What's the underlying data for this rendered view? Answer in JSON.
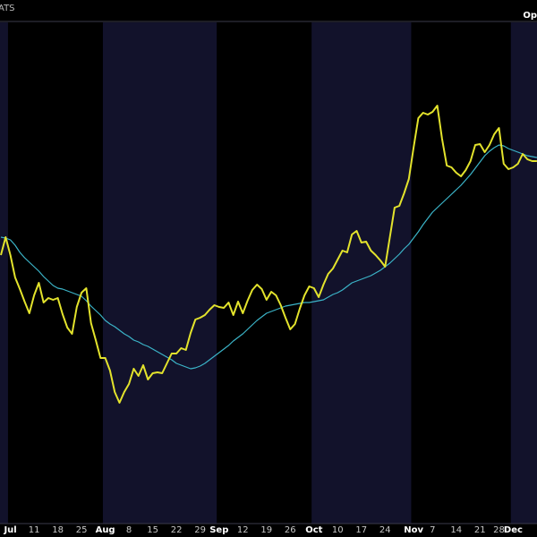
{
  "chart_data": {
    "type": "line",
    "annotations": [
      "ATS",
      "Op"
    ],
    "categories": [
      null,
      null,
      "Jul",
      null,
      null,
      null,
      null,
      "11",
      null,
      null,
      null,
      null,
      "18",
      null,
      null,
      null,
      null,
      "25",
      null,
      null,
      null,
      null,
      "Aug",
      null,
      null,
      null,
      null,
      "8",
      null,
      null,
      null,
      null,
      "15",
      null,
      null,
      null,
      null,
      "22",
      null,
      null,
      null,
      null,
      "29",
      null,
      null,
      null,
      "Sep",
      null,
      null,
      null,
      null,
      "12",
      null,
      null,
      null,
      null,
      "19",
      null,
      null,
      null,
      null,
      "26",
      null,
      null,
      null,
      null,
      "Oct",
      null,
      null,
      null,
      null,
      "10",
      null,
      null,
      null,
      null,
      "17",
      null,
      null,
      null,
      null,
      "24",
      null,
      null,
      null,
      null,
      null,
      "Nov",
      null,
      null,
      null,
      "7",
      null,
      null,
      null,
      null,
      "14",
      null,
      null,
      null,
      null,
      "21",
      null,
      null,
      null,
      "28",
      null,
      null,
      "Dec",
      null,
      null,
      null,
      null,
      null
    ],
    "series": [
      {
        "color": "#e3e32c",
        "values": [
          315,
          335,
          315,
          290,
          277,
          263,
          250,
          270,
          284,
          262,
          267,
          265,
          267,
          249,
          234,
          227,
          257,
          273,
          278,
          239,
          220,
          200,
          200,
          186,
          162,
          150,
          162,
          171,
          188,
          180,
          192,
          176,
          183,
          184,
          183,
          194,
          205,
          205,
          211,
          209,
          228,
          243,
          245,
          248,
          254,
          259,
          257,
          256,
          262,
          248,
          263,
          250,
          264,
          276,
          282,
          277,
          265,
          274,
          270,
          259,
          245,
          232,
          238,
          255,
          270,
          280,
          278,
          268,
          282,
          294,
          300,
          310,
          320,
          318,
          338,
          342,
          329,
          330,
          320,
          315,
          309,
          302,
          335,
          368,
          370,
          384,
          400,
          435,
          468,
          474,
          472,
          475,
          482,
          445,
          415,
          413,
          407,
          403,
          410,
          420,
          438,
          439,
          430,
          438,
          450,
          457,
          417,
          411,
          413,
          417,
          428,
          422,
          420,
          420
        ]
      },
      {
        "color": "#3bb4c8",
        "values": [
          335,
          334,
          332,
          326,
          318,
          312,
          307,
          302,
          297,
          291,
          286,
          281,
          278,
          277,
          275,
          273,
          271,
          269,
          264,
          258,
          253,
          248,
          242,
          238,
          235,
          231,
          227,
          224,
          220,
          218,
          215,
          213,
          210,
          207,
          204,
          201,
          198,
          194,
          192,
          190,
          188,
          189,
          191,
          194,
          198,
          202,
          206,
          210,
          214,
          219,
          223,
          227,
          232,
          237,
          242,
          246,
          250,
          252,
          254,
          256,
          258,
          259,
          260,
          261,
          262,
          262,
          263,
          264,
          265,
          268,
          271,
          273,
          276,
          280,
          284,
          286,
          288,
          290,
          292,
          295,
          298,
          302,
          306,
          311,
          316,
          322,
          327,
          334,
          341,
          349,
          356,
          363,
          368,
          373,
          378,
          383,
          388,
          393,
          399,
          405,
          412,
          419,
          426,
          431,
          435,
          438,
          437,
          434,
          432,
          430,
          428,
          426,
          425,
          424
        ]
      }
    ],
    "ylim": [
      15,
      575
    ],
    "grid": false,
    "background": "#000000",
    "band_color": "#12122b"
  }
}
